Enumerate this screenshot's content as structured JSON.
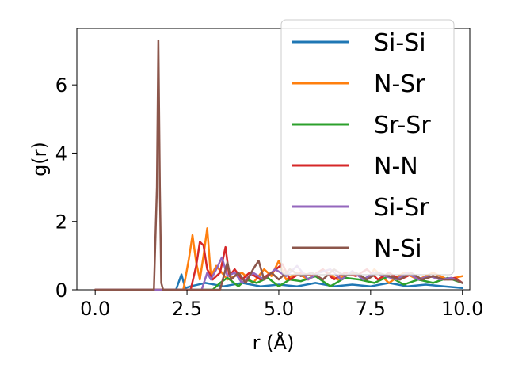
{
  "chart_data": {
    "type": "line",
    "xlabel": "r (Å)",
    "ylabel": "g(r)",
    "xlim": [
      -0.5,
      10.2
    ],
    "ylim": [
      0,
      7.65
    ],
    "xticks": [
      "0.0",
      "2.5",
      "5.0",
      "7.5",
      "10.0"
    ],
    "yticks": [
      "0",
      "2",
      "4",
      "6"
    ],
    "legend_position": "upper-right",
    "grid": false,
    "series": [
      {
        "name": "Si-Si",
        "color": "#1f77b4",
        "x": [
          0,
          2.2,
          2.3,
          2.35,
          2.45,
          2.6,
          3.0,
          3.5,
          4.0,
          4.5,
          5.0,
          5.5,
          6.0,
          6.5,
          7.0,
          7.5,
          8.0,
          8.5,
          9.0,
          9.5,
          10.0
        ],
        "y": [
          0,
          0,
          0.3,
          0.45,
          0.05,
          0.1,
          0.2,
          0.1,
          0.2,
          0.1,
          0.15,
          0.1,
          0.2,
          0.1,
          0.15,
          0.1,
          0.2,
          0.1,
          0.15,
          0.1,
          0.05
        ]
      },
      {
        "name": "N-Sr",
        "color": "#ff7f0e",
        "x": [
          0,
          2.4,
          2.55,
          2.65,
          2.75,
          2.85,
          2.95,
          3.05,
          3.15,
          3.3,
          3.6,
          4.0,
          4.3,
          4.6,
          4.8,
          5.0,
          5.2,
          5.5,
          5.8,
          6.2,
          6.6,
          7.0,
          7.4,
          7.6,
          8.0,
          8.4,
          8.8,
          9.2,
          9.6,
          10.0
        ],
        "y": [
          0,
          0,
          0.9,
          1.6,
          0.8,
          0.3,
          1.0,
          1.8,
          0.4,
          0.7,
          0.3,
          0.5,
          0.2,
          0.6,
          0.4,
          0.85,
          0.3,
          0.5,
          0.3,
          0.6,
          0.3,
          0.5,
          0.3,
          0.6,
          0.2,
          0.5,
          0.3,
          0.5,
          0.3,
          0.4
        ]
      },
      {
        "name": "Sr-Sr",
        "color": "#2ca02c",
        "x": [
          0,
          3.2,
          3.4,
          3.6,
          3.9,
          4.1,
          4.4,
          4.7,
          5.0,
          5.3,
          5.6,
          6.0,
          6.4,
          6.8,
          7.2,
          7.6,
          8.0,
          8.4,
          8.8,
          9.2,
          9.6,
          10.0
        ],
        "y": [
          0,
          0,
          0.2,
          0.35,
          0.1,
          0.3,
          0.2,
          0.35,
          0.1,
          0.3,
          0.25,
          0.4,
          0.1,
          0.35,
          0.3,
          0.2,
          0.4,
          0.15,
          0.3,
          0.2,
          0.35,
          0.2
        ]
      },
      {
        "name": "N-N",
        "color": "#d62728",
        "x": [
          0,
          2.6,
          2.75,
          2.85,
          2.95,
          3.05,
          3.2,
          3.4,
          3.55,
          3.65,
          3.8,
          4.0,
          4.2,
          4.5,
          4.8,
          5.1,
          5.3,
          5.6,
          5.9,
          6.2,
          6.5,
          6.8,
          7.1,
          7.4,
          7.7,
          8.0,
          8.3,
          8.6,
          8.9,
          9.2,
          9.5,
          9.8,
          10.0
        ],
        "y": [
          0,
          0,
          0.7,
          1.4,
          1.3,
          0.6,
          0.3,
          0.5,
          1.25,
          0.4,
          0.6,
          0.3,
          0.5,
          0.3,
          0.5,
          0.75,
          0.3,
          0.5,
          0.4,
          0.6,
          0.3,
          0.5,
          0.4,
          0.6,
          0.3,
          0.5,
          0.3,
          0.45,
          0.3,
          0.4,
          0.3,
          0.35,
          0.2
        ]
      },
      {
        "name": "Si-Sr",
        "color": "#9467bd",
        "x": [
          0,
          2.9,
          3.05,
          3.15,
          3.3,
          3.45,
          3.6,
          3.8,
          4.0,
          4.3,
          4.6,
          4.9,
          5.2,
          5.5,
          5.8,
          6.1,
          6.4,
          6.7,
          7.0,
          7.3,
          7.6,
          7.9,
          8.2,
          8.5,
          8.8,
          9.1,
          9.4,
          9.7,
          10.0
        ],
        "y": [
          0,
          0,
          0.5,
          0.3,
          0.6,
          0.95,
          0.4,
          0.5,
          0.2,
          0.5,
          0.3,
          0.6,
          0.4,
          0.7,
          0.3,
          0.5,
          0.6,
          0.3,
          0.55,
          0.3,
          0.5,
          0.4,
          0.3,
          0.5,
          0.3,
          0.4,
          0.3,
          0.35,
          0.2
        ]
      },
      {
        "name": "N-Si",
        "color": "#8c564b",
        "x": [
          0,
          1.6,
          1.68,
          1.72,
          1.76,
          1.8,
          1.85,
          3.4,
          3.5,
          3.6,
          3.7,
          3.9,
          4.1,
          4.3,
          4.45,
          4.6,
          4.8,
          5.0,
          5.3,
          5.6,
          5.9,
          6.2,
          6.5,
          6.8,
          7.1,
          7.4,
          7.7,
          8.0,
          8.3,
          8.6,
          8.9,
          9.2,
          9.5,
          9.8,
          10.0
        ],
        "y": [
          0,
          0,
          3.0,
          7.3,
          3.0,
          0.2,
          0,
          0,
          0.4,
          0.8,
          0.3,
          0.5,
          0.2,
          0.6,
          0.85,
          0.3,
          0.5,
          0.3,
          0.6,
          0.4,
          0.5,
          0.3,
          0.6,
          0.4,
          0.5,
          0.3,
          0.5,
          0.4,
          0.3,
          0.5,
          0.3,
          0.4,
          0.3,
          0.3,
          0.2
        ]
      }
    ]
  }
}
